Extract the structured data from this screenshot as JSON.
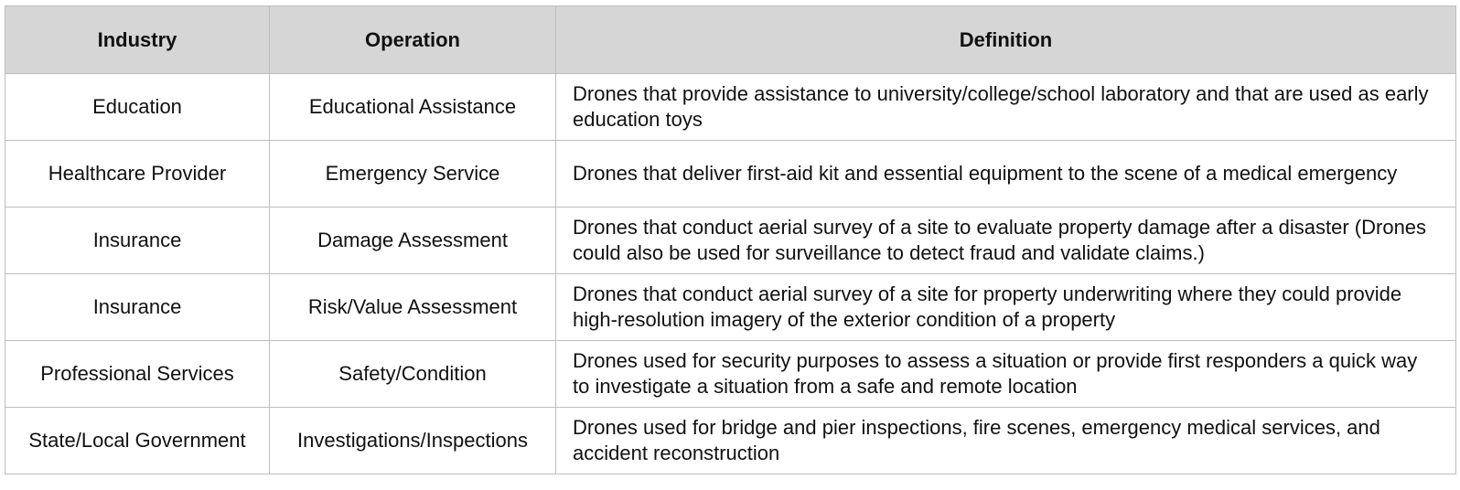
{
  "table": {
    "headers": [
      "Industry",
      "Operation",
      "Definition"
    ],
    "rows": [
      {
        "industry": "Education",
        "operation": "Educational Assistance",
        "definition": "Drones that provide assistance to university/college/school laboratory and that are used as early education toys"
      },
      {
        "industry": "Healthcare Provider",
        "operation": "Emergency Service",
        "definition": "Drones that deliver first-aid kit and essential equipment to the scene of a medical emergency"
      },
      {
        "industry": "Insurance",
        "operation": "Damage Assessment",
        "definition": "Drones that conduct aerial survey of a site to evaluate property damage after a disaster (Drones could also be used for surveillance to detect fraud and validate claims.)"
      },
      {
        "industry": "Insurance",
        "operation": "Risk/Value Assessment",
        "definition": "Drones that conduct aerial survey of a site for property underwriting where they could provide high-resolution imagery of the exterior condition of a property"
      },
      {
        "industry": "Professional Services",
        "operation": "Safety/Condition",
        "definition": "Drones used for security purposes to assess a situation or provide first responders a quick way to investigate a situation from a safe and remote location"
      },
      {
        "industry": "State/Local Government",
        "operation": "Investigations/Inspections",
        "definition": "Drones used for bridge and pier inspections, fire scenes, emergency medical services, and accident reconstruction"
      }
    ]
  }
}
